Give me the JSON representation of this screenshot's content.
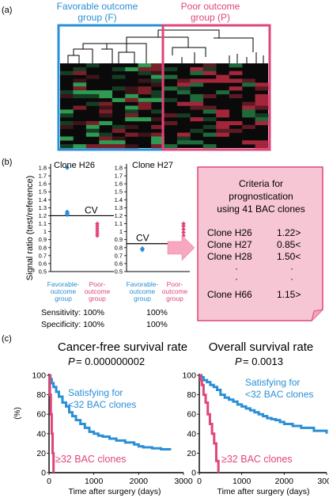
{
  "panel_a": {
    "label": "(a)",
    "group_f": {
      "line1": "Favorable outcome",
      "line2": "group (F)",
      "color": "#2a8fd6"
    },
    "group_p": {
      "line1": "Poor outcome",
      "line2": "group (P)",
      "color": "#e0457b"
    }
  },
  "panel_b": {
    "label": "(b)",
    "y_axis_label": "Signal ratio (test/reference)",
    "y_ticks": [
      "0.5",
      "0.6",
      "0.7",
      "0.8",
      "0.9",
      "1",
      "1.1",
      "1.2",
      "1.3",
      "1.4",
      "1.5",
      "1.6",
      "1.7",
      "1.8"
    ],
    "h26": {
      "title": "Clone H26",
      "cv_label": "CV",
      "cv_value": 1.2,
      "favorable_points": [
        1.8,
        1.25,
        1.24,
        1.23,
        1.22,
        1.21
      ],
      "poor_points": [
        1.1,
        1.07,
        1.04,
        1.01,
        0.98,
        0.95
      ],
      "group1": [
        "Favorable-",
        "outcome",
        "group"
      ],
      "group2": [
        "Poor-",
        "outcome",
        "group"
      ],
      "sensitivity": "Sensitivity: 100%",
      "specificity": "Specificity: 100%"
    },
    "h27": {
      "title": "Clone H27",
      "cv_label": "CV",
      "cv_value": 0.85,
      "favorable_points": [
        0.79,
        0.78,
        0.77
      ],
      "poor_points": [
        1.1,
        1.07,
        1.03,
        0.99,
        0.95,
        0.91
      ],
      "group1": [
        "Favorable-",
        "outcome",
        "group"
      ],
      "group2": [
        "Poor-",
        "outcome",
        "group"
      ],
      "sensitivity": "100%",
      "specificity": "100%"
    },
    "criteria": {
      "title": [
        "Criteria for",
        "prognostication",
        "using 41 BAC clones"
      ],
      "rows": [
        {
          "clone": "Clone H26",
          "value": "1.22>"
        },
        {
          "clone": "Clone H27",
          "value": "0.85<"
        },
        {
          "clone": "Clone H28",
          "value": "1.50<"
        },
        {
          "clone": "·",
          "value": "·"
        },
        {
          "clone": "·",
          "value": "·"
        },
        {
          "clone": "Clone H66",
          "value": "1.15>"
        }
      ]
    }
  },
  "panel_c": {
    "label": "(c)",
    "y_axis_label": "(%)",
    "y_ticks": [
      "0",
      "20",
      "40",
      "60",
      "80",
      "100"
    ],
    "x_label": "Time after surgery (days)",
    "left": {
      "title": "Cancer-free survival rate",
      "p_label": "P",
      "p_value": " = 0.000000002",
      "x_ticks": [
        "0",
        "1000",
        "2000",
        "3000"
      ],
      "blue_label": [
        "Satisfying for",
        "<32 BAC clones"
      ],
      "red_label": "≥32 BAC clones",
      "chart_data": {
        "type": "line",
        "xlim": [
          0,
          3000
        ],
        "ylim": [
          0,
          100
        ],
        "series": [
          {
            "color": "#2a8fd6",
            "x": [
              0,
              30,
              60,
              100,
              160,
              220,
              300,
              380,
              450,
              520,
              600,
              700,
              800,
              900,
              1000,
              1100,
              1200,
              1350,
              1500,
              1700,
              1900,
              2000,
              2100,
              2300,
              2500,
              2700
            ],
            "y": [
              100,
              96,
              92,
              88,
              83,
              78,
              72,
              68,
              62,
              58,
              54,
              50,
              46,
              42,
              40,
              38,
              37,
              35,
              33,
              31,
              29,
              27,
              26,
              25,
              24,
              23
            ]
          },
          {
            "color": "#e0457b",
            "x": [
              0,
              20,
              40,
              60,
              80,
              100
            ],
            "y": [
              100,
              80,
              60,
              40,
              20,
              0
            ]
          }
        ]
      }
    },
    "right": {
      "title": "Overall survival rate",
      "p_label": "P",
      "p_value": " = 0.0013",
      "x_ticks": [
        "0",
        "1000",
        "2000",
        "3000"
      ],
      "blue_label": [
        "Satisfying for",
        "<32 BAC clones"
      ],
      "red_label": "≥32 BAC clones",
      "chart_data": {
        "type": "line",
        "xlim": [
          0,
          3000
        ],
        "ylim": [
          0,
          100
        ],
        "series": [
          {
            "color": "#2a8fd6",
            "x": [
              0,
              50,
              100,
              180,
              260,
              340,
              420,
              500,
              600,
              700,
              800,
              900,
              1000,
              1100,
              1200,
              1300,
              1400,
              1500,
              1600,
              1700,
              1800,
              1900,
              2000,
              2200,
              2400,
              2700,
              3000
            ],
            "y": [
              100,
              98,
              95,
              93,
              90,
              88,
              85,
              80,
              77,
              75,
              73,
              70,
              68,
              66,
              64,
              62,
              60,
              58,
              56,
              55,
              54,
              52,
              50,
              48,
              46,
              43,
              40
            ]
          },
          {
            "color": "#e0457b",
            "x": [
              0,
              30,
              60,
              100,
              150,
              200,
              250,
              300,
              350,
              400,
              450
            ],
            "y": [
              100,
              95,
              90,
              80,
              72,
              60,
              50,
              40,
              30,
              12,
              0
            ]
          }
        ]
      }
    }
  }
}
